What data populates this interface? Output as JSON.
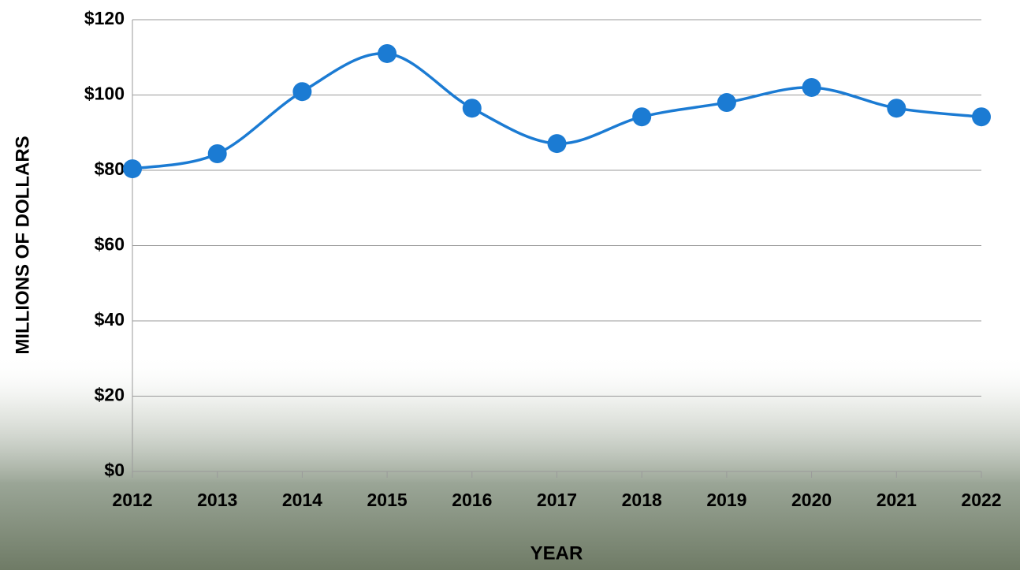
{
  "chart_data": {
    "type": "line",
    "x_label": "YEAR",
    "y_label": "MILLIONS OF DOLLARS",
    "categories": [
      "2012",
      "2013",
      "2014",
      "2015",
      "2016",
      "2017",
      "2018",
      "2019",
      "2020",
      "2021",
      "2022"
    ],
    "series": [
      {
        "color": "#1b7bd3",
        "values": [
          80.4,
          84.4,
          100.9,
          111.0,
          96.5,
          87.1,
          94.2,
          98.0,
          102.0,
          96.5,
          94.2
        ]
      }
    ],
    "ylim": [
      0,
      120
    ],
    "yticks": [
      {
        "value": 0,
        "label": "$0"
      },
      {
        "value": 20,
        "label": "$20"
      },
      {
        "value": 40,
        "label": "$40"
      },
      {
        "value": 60,
        "label": "$60"
      },
      {
        "value": 80,
        "label": "$80"
      },
      {
        "value": 100,
        "label": "$100"
      },
      {
        "value": 120,
        "label": "$120"
      }
    ],
    "grid": true,
    "smooth": true
  }
}
